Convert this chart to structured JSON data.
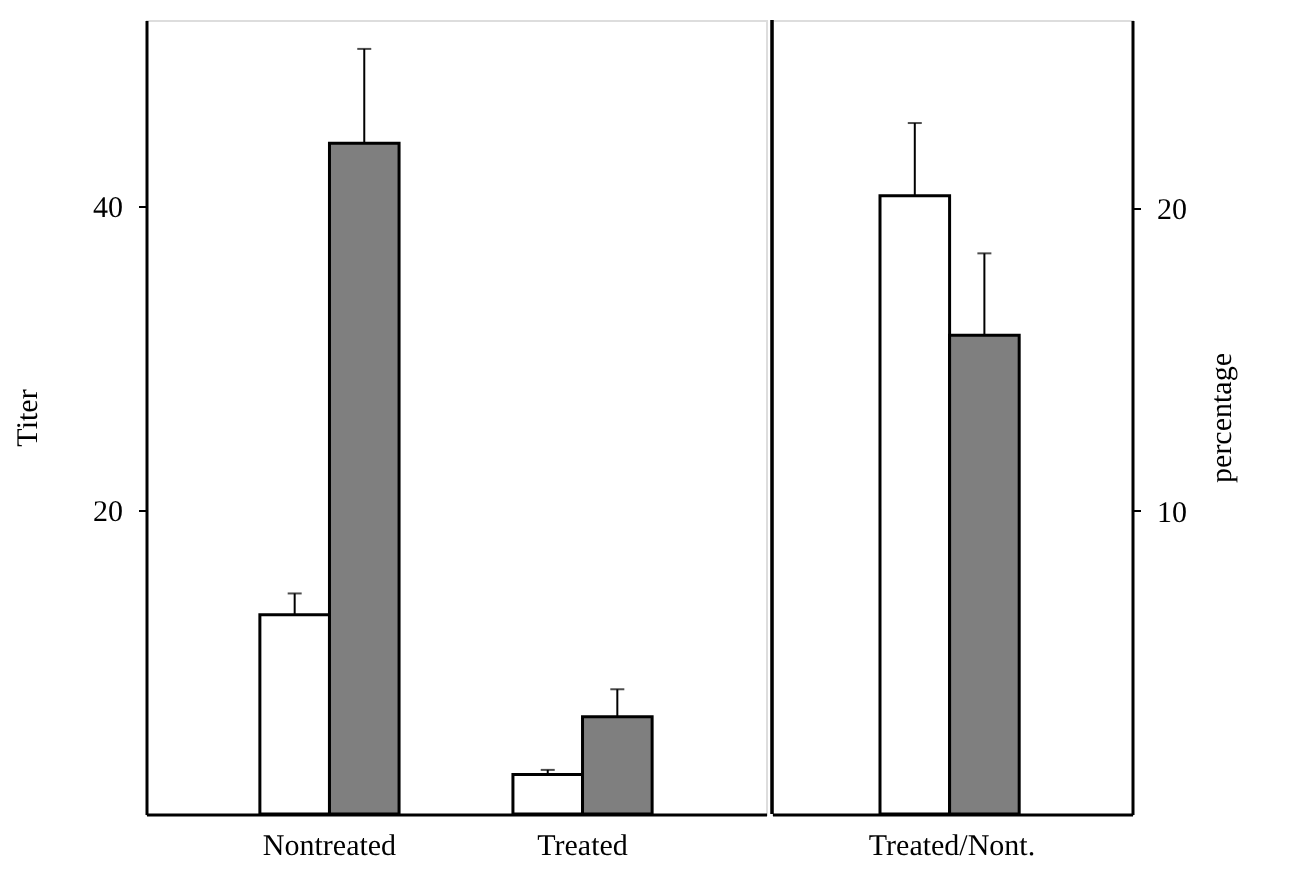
{
  "chart_data": [
    {
      "type": "bar",
      "categories": [
        "Nontreated",
        "Treated"
      ],
      "ylabel": "Titer",
      "ylim": [
        0,
        52.2
      ],
      "yticks": [
        20,
        40
      ],
      "series": [
        {
          "color": "#ffffff",
          "values": [
            13.1,
            2.6
          ],
          "errors": [
            [
              13.1,
              14.5
            ],
            [
              2.6,
              2.9
            ]
          ]
        },
        {
          "color": "#7f7f7f",
          "values": [
            44.1,
            6.4
          ],
          "errors": [
            [
              44.1,
              50.3
            ],
            [
              6.4,
              8.2
            ]
          ]
        }
      ]
    },
    {
      "type": "bar",
      "categories": [
        "Treated/Nont."
      ],
      "y2label": "percentage",
      "y2lim": [
        0,
        26.2
      ],
      "y2ticks": [
        10,
        20
      ],
      "series": [
        {
          "color": "#ffffff",
          "values": [
            20.4
          ],
          "errors": [
            [
              20.4,
              22.8
            ]
          ],
          "axis": "y2"
        },
        {
          "color": "#7f7f7f",
          "values": [
            15.8
          ],
          "errors": [
            [
              15.8,
              18.5
            ]
          ],
          "axis": "y2"
        }
      ]
    }
  ]
}
